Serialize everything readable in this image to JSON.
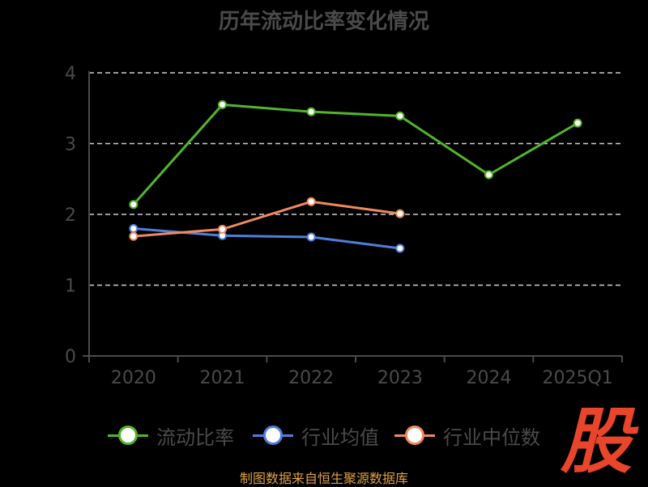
{
  "title": "历年流动比率变化情况",
  "source": "制图数据来自恒生聚源数据库",
  "logo_text": "股",
  "colors": {
    "axis": "#4a4a4a",
    "grid": "#cfcfcf",
    "tick_text": "#4a4a4a",
    "current_ratio": "#52b52b",
    "industry_avg": "#4f7fdc",
    "industry_median": "#f08a5d"
  },
  "chart_data": {
    "type": "line",
    "title": "历年流动比率变化情况",
    "categories": [
      "2020",
      "2021",
      "2022",
      "2023",
      "2024",
      "2025Q1"
    ],
    "yticks": [
      "0",
      "1",
      "2",
      "3",
      "4"
    ],
    "ylim": [
      0,
      4
    ],
    "grid": true,
    "legend_position": "bottom",
    "series": [
      {
        "name": "流动比率",
        "color_key": "current_ratio",
        "values": [
          2.14,
          3.55,
          3.45,
          3.39,
          2.56,
          3.29
        ]
      },
      {
        "name": "行业均值",
        "color_key": "industry_avg",
        "values": [
          1.8,
          1.7,
          1.68,
          1.52,
          null,
          null
        ]
      },
      {
        "name": "行业中位数",
        "color_key": "industry_median",
        "values": [
          1.69,
          1.79,
          2.18,
          2.01,
          null,
          null
        ]
      }
    ]
  }
}
